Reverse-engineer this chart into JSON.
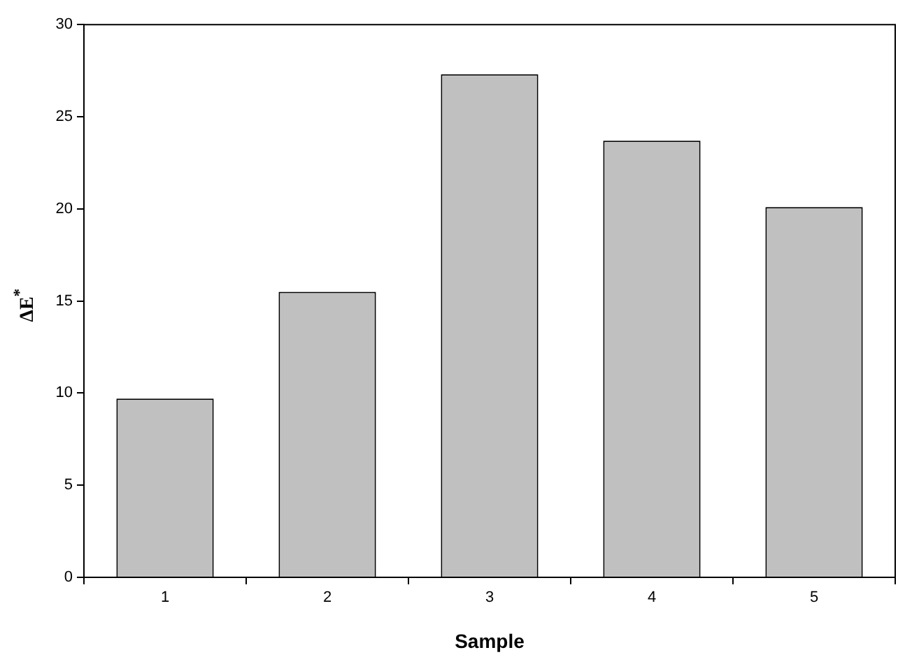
{
  "chart_data": {
    "type": "bar",
    "xlabel": "Sample",
    "ylabel": "ΔE$^{*}$",
    "categories": [
      "1",
      "2",
      "3",
      "4",
      "5"
    ],
    "values": [
      9.7,
      15.5,
      27.3,
      23.7,
      20.1
    ],
    "color": "#c0c0c0",
    "ylim": [
      0,
      30
    ],
    "yticks": [
      0,
      5,
      10,
      15,
      20,
      25,
      30
    ]
  }
}
